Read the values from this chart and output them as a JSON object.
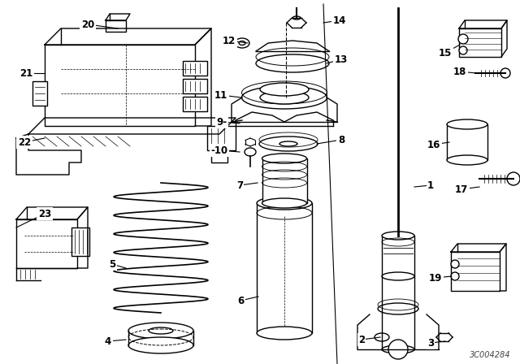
{
  "background_color": "#ffffff",
  "diagram_code": "3C004284",
  "line_color": "#000000",
  "label_fontsize": 8.5,
  "label_fontweight": "bold",
  "fig_w": 6.4,
  "fig_h": 4.48,
  "dpi": 100
}
